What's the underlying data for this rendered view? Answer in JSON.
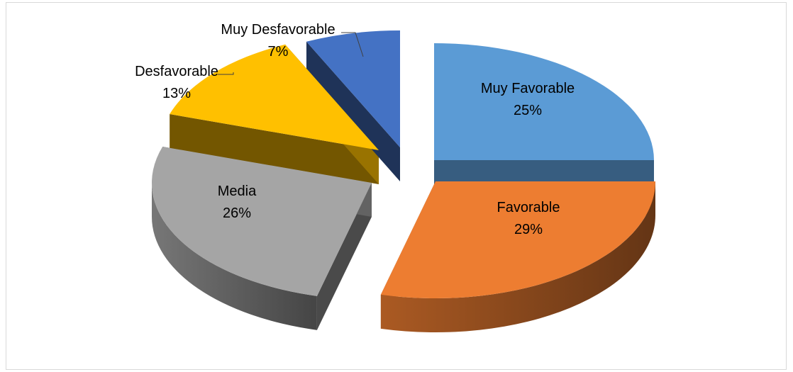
{
  "chart_data": {
    "type": "pie",
    "style": "3d-exploded",
    "title": "",
    "slices": [
      {
        "label": "Muy Favorable",
        "value": 25,
        "display": "25%",
        "color": "#5b9bd5"
      },
      {
        "label": "Favorable",
        "value": 29,
        "display": "29%",
        "color": "#ed7d31"
      },
      {
        "label": "Media",
        "value": 26,
        "display": "26%",
        "color": "#a5a5a5"
      },
      {
        "label": "Desfavorable",
        "value": 13,
        "display": "13%",
        "color": "#ffc000"
      },
      {
        "label": "Muy Desfavorable",
        "value": 7,
        "display": "7%",
        "color": "#4472c4"
      }
    ],
    "legend": "none",
    "data_labels": "category name and percentage"
  }
}
